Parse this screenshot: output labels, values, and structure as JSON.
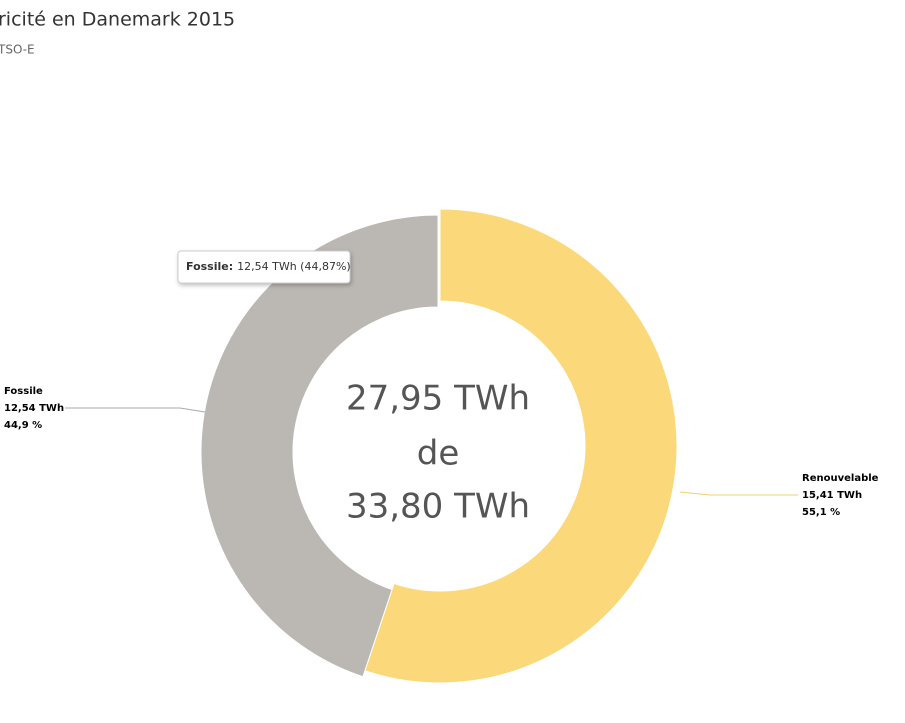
{
  "chart_data": {
    "type": "donut",
    "title": "ricité en Danemark 2015",
    "subtitle": "TSO-E",
    "categories": [
      "Renouvelable",
      "Fossile"
    ],
    "values": [
      15.41,
      12.54
    ],
    "value_labels": [
      "15,41 TWh",
      "12,54 TWh"
    ],
    "percentages": [
      55.1,
      44.9
    ],
    "percent_labels": [
      "55,1 %",
      "44,9 %"
    ],
    "colors": [
      "#fbd87a",
      "#bbb7b3"
    ],
    "center_text": [
      "27,95 TWh",
      "de",
      "33,80 TWh"
    ],
    "tooltip": {
      "series": "Fossile:",
      "text": "12,54 TWh (44,87%)"
    }
  }
}
